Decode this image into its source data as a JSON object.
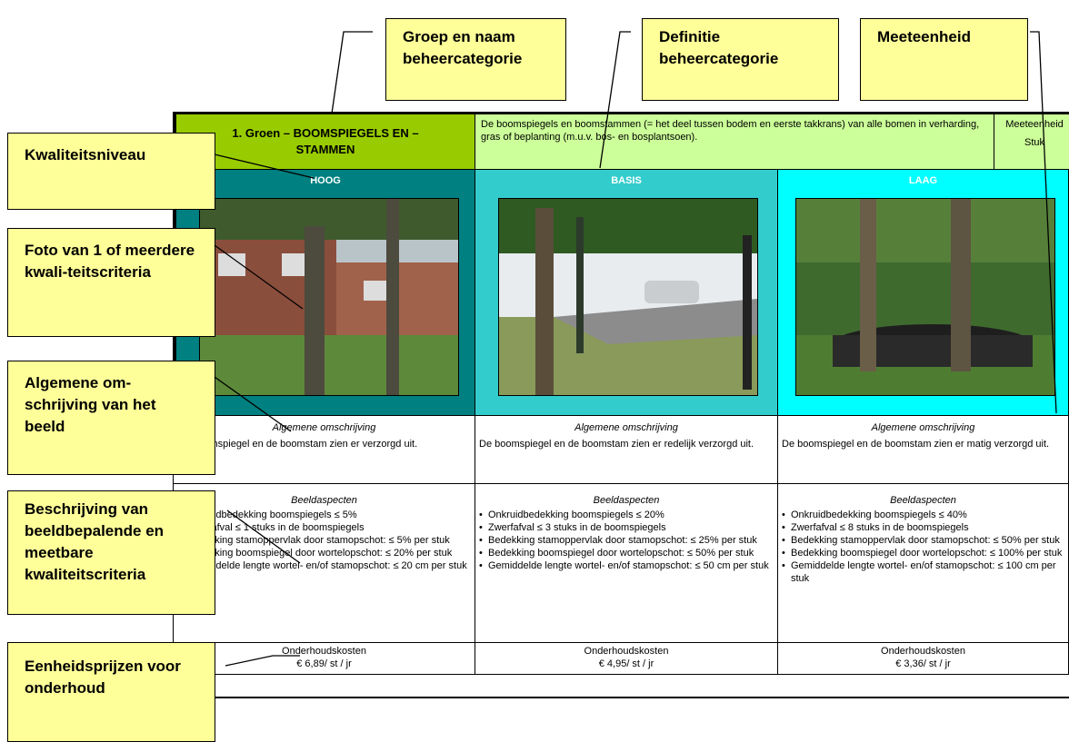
{
  "callouts": {
    "top": [
      "Groep en naam beheercategorie",
      "Definitie beheercategorie",
      "Meeteenheid"
    ],
    "left": [
      "Kwaliteitsniveau",
      "Foto van 1 of meerdere kwali-teitscriteria",
      "Algemene om-schrijving van het beeld",
      "Beschrijving van beeldbepalende en meetbare kwaliteitscriteria",
      "Eenheidsprijzen voor onderhoud"
    ]
  },
  "table": {
    "header": {
      "group": "1.  Groen – BOOMSPIEGELS EN – STAMMEN",
      "definition": "De boomspiegels en boomstammen (= het deel tussen bodem en eerste takkrans) van alle bomen in verharding, gras of beplanting (m.u.v. bos- en bosplantsoen).",
      "unit_label": "Meeteenheid",
      "unit": "Stuk"
    },
    "levels": [
      {
        "name": "HOOG",
        "description_heading": "Algemene omschrijving",
        "description": "De boomspiegel en de boomstam zien er verzorgd uit.",
        "aspects_heading": "Beeldaspecten",
        "aspects": [
          "Onkruidbedekking boomspiegels ≤ 5%",
          "Zwerfafval ≤ 1 stuks in de boomspiegels",
          "Bedekking stamoppervlak door stamopschot: ≤ 5% per stuk",
          "Bedekking boomspiegel door wortelopschot: ≤ 20% per stuk",
          "Gemiddelde lengte wortel- en/of stamopschot: ≤ 20 cm per stuk"
        ],
        "cost_label": "Onderhoudskosten",
        "cost": "€ 6,89/ st / jr"
      },
      {
        "name": "BASIS",
        "description_heading": "Algemene omschrijving",
        "description": "De boomspiegel en de boomstam zien er redelijk verzorgd uit.",
        "aspects_heading": "Beeldaspecten",
        "aspects": [
          "Onkruidbedekking boomspiegels ≤ 20%",
          "Zwerfafval ≤ 3 stuks in de boomspiegels",
          "Bedekking stamoppervlak door stamopschot: ≤ 25% per stuk",
          "Bedekking boomspiegel door wortelopschot: ≤ 50% per stuk",
          "Gemiddelde lengte wortel- en/of stamopschot: ≤ 50 cm per stuk"
        ],
        "cost_label": "Onderhoudskosten",
        "cost": "€ 4,95/ st / jr"
      },
      {
        "name": "LAAG",
        "description_heading": "Algemene omschrijving",
        "description": "De boomspiegel en de boomstam zien er matig verzorgd uit.",
        "aspects_heading": "Beeldaspecten",
        "aspects": [
          "Onkruidbedekking boomspiegels ≤ 40%",
          "Zwerfafval ≤ 8 stuks in de boomspiegels",
          "Bedekking stamoppervlak door stamopschot: ≤ 50% per stuk",
          "Bedekking boomspiegel door wortelopschot: ≤ 100% per stuk",
          "Gemiddelde lengte wortel- en/of stamopschot: ≤ 100 cm per stuk"
        ],
        "cost_label": "Onderhoudskosten",
        "cost": "€ 3,36/ st / jr"
      }
    ]
  }
}
